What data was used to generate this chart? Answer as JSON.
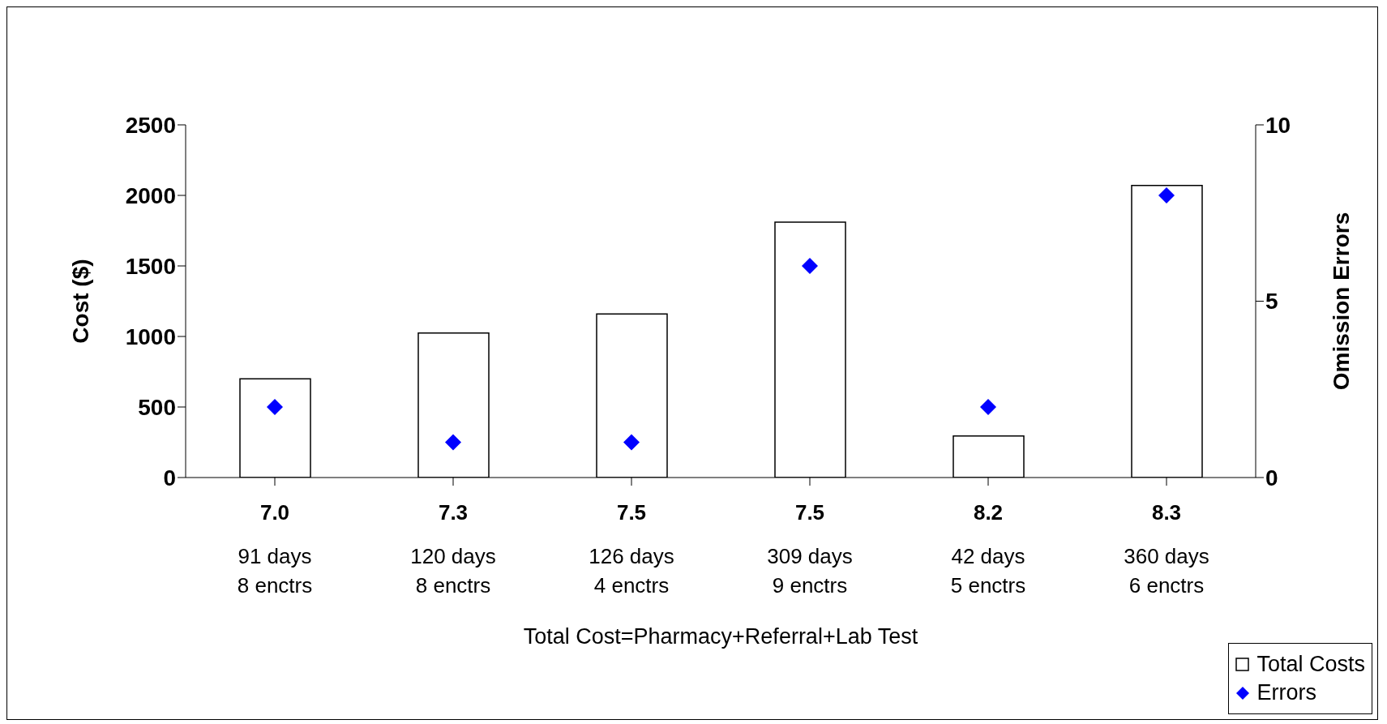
{
  "chart_data": {
    "type": "bar",
    "xlabel": "Total Cost=Pharmacy+Referral+Lab Test",
    "ylabel": "Cost ($)",
    "y2label": "Omission Errors",
    "categories": [
      "7.0\n91 days\n8 enctrs",
      "7.3\n120 days\n8 enctrs",
      "7.5\n126 days\n4 enctrs",
      "7.5\n309 days\n9 enctrs",
      "8.2\n42 days\n5 enctrs",
      "8.3\n360 days\n6 enctrs"
    ],
    "series": [
      {
        "name": "Total Costs",
        "color": "#ffffff",
        "values": [
          700,
          1025,
          1160,
          1810,
          295,
          2070
        ]
      },
      {
        "name": "Errors",
        "type": "scatter",
        "axis": "y2",
        "color": "#0000ff",
        "marker": "diamond",
        "values": [
          2,
          1,
          1,
          6,
          2,
          8
        ]
      }
    ],
    "ylim": [
      0,
      2500
    ],
    "yticks": [
      0,
      500,
      1000,
      1500,
      2000,
      2500
    ],
    "y2lim": [
      0,
      10
    ],
    "y2ticks": [
      0,
      5,
      10
    ],
    "grid": false,
    "legend": "bottom right"
  }
}
